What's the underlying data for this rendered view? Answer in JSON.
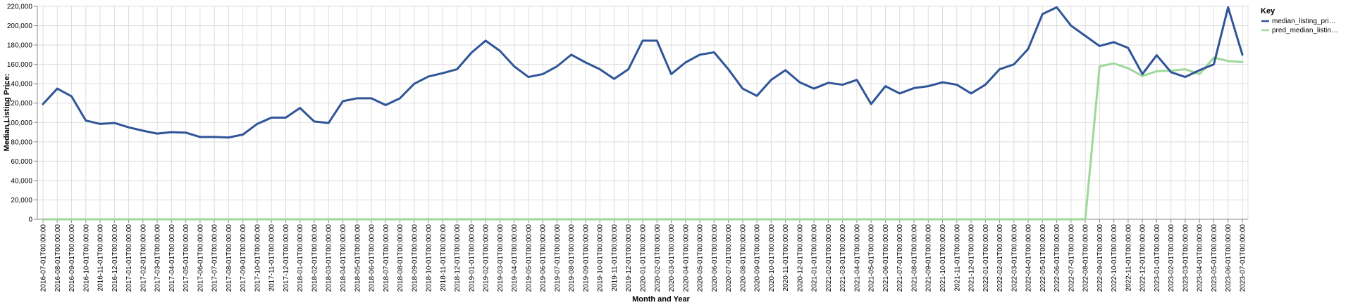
{
  "chart_data": {
    "type": "line",
    "xlabel": "Month and Year",
    "ylabel": "Median Listing Price:",
    "ylim": [
      0,
      220000
    ],
    "yticks": [
      0,
      20000,
      40000,
      60000,
      80000,
      100000,
      120000,
      140000,
      160000,
      180000,
      200000,
      220000
    ],
    "ytick_labels": [
      "0",
      "20,000",
      "40,000",
      "60,000",
      "80,000",
      "100,000",
      "120,000",
      "140,000",
      "160,000",
      "180,000",
      "200,000",
      "220,000"
    ],
    "grid": true,
    "legend_placement": "right",
    "x": [
      "2016-07-01T00:00:00",
      "2016-08-01T00:00:00",
      "2016-09-01T00:00:00",
      "2016-10-01T00:00:00",
      "2016-11-01T00:00:00",
      "2016-12-01T00:00:00",
      "2017-01-01T00:00:00",
      "2017-02-01T00:00:00",
      "2017-03-01T00:00:00",
      "2017-04-01T00:00:00",
      "2017-05-01T00:00:00",
      "2017-06-01T00:00:00",
      "2017-07-01T00:00:00",
      "2017-08-01T00:00:00",
      "2017-09-01T00:00:00",
      "2017-10-01T00:00:00",
      "2017-11-01T00:00:00",
      "2017-12-01T00:00:00",
      "2018-01-01T00:00:00",
      "2018-02-01T00:00:00",
      "2018-03-01T00:00:00",
      "2018-04-01T00:00:00",
      "2018-05-01T00:00:00",
      "2018-06-01T00:00:00",
      "2018-07-01T00:00:00",
      "2018-08-01T00:00:00",
      "2018-09-01T00:00:00",
      "2018-10-01T00:00:00",
      "2018-11-01T00:00:00",
      "2018-12-01T00:00:00",
      "2019-01-01T00:00:00",
      "2019-02-01T00:00:00",
      "2019-03-01T00:00:00",
      "2019-04-01T00:00:00",
      "2019-05-01T00:00:00",
      "2019-06-01T00:00:00",
      "2019-07-01T00:00:00",
      "2019-08-01T00:00:00",
      "2019-09-01T00:00:00",
      "2019-10-01T00:00:00",
      "2019-11-01T00:00:00",
      "2019-12-01T00:00:00",
      "2020-01-01T00:00:00",
      "2020-02-01T00:00:00",
      "2020-03-01T00:00:00",
      "2020-04-01T00:00:00",
      "2020-05-01T00:00:00",
      "2020-06-01T00:00:00",
      "2020-07-01T00:00:00",
      "2020-08-01T00:00:00",
      "2020-09-01T00:00:00",
      "2020-10-01T00:00:00",
      "2020-11-01T00:00:00",
      "2020-12-01T00:00:00",
      "2021-01-01T00:00:00",
      "2021-02-01T00:00:00",
      "2021-03-01T00:00:00",
      "2021-04-01T00:00:00",
      "2021-05-01T00:00:00",
      "2021-06-01T00:00:00",
      "2021-07-01T00:00:00",
      "2021-08-01T00:00:00",
      "2021-09-01T00:00:00",
      "2021-10-01T00:00:00",
      "2021-11-01T00:00:00",
      "2021-12-01T00:00:00",
      "2022-01-01T00:00:00",
      "2022-02-01T00:00:00",
      "2022-03-01T00:00:00",
      "2022-04-01T00:00:00",
      "2022-05-01T00:00:00",
      "2022-06-01T00:00:00",
      "2022-07-01T00:00:00",
      "2022-08-01T00:00:00",
      "2022-09-01T00:00:00",
      "2022-10-01T00:00:00",
      "2022-11-01T00:00:00",
      "2022-12-01T00:00:00",
      "2023-01-01T00:00:00",
      "2023-02-01T00:00:00",
      "2023-03-01T00:00:00",
      "2023-04-01T00:00:00",
      "2023-05-01T00:00:00",
      "2023-06-01T00:00:00",
      "2023-07-01T00:00:00"
    ],
    "series": [
      {
        "name": "median_listing_pri…",
        "color": "#2f5597",
        "values": [
          119000,
          135000,
          127000,
          102000,
          98500,
          99500,
          95000,
          91500,
          88500,
          90000,
          89500,
          85000,
          85000,
          84500,
          87500,
          98500,
          105000,
          105000,
          115000,
          101000,
          99500,
          122000,
          125000,
          125000,
          118000,
          125000,
          140000,
          147500,
          151000,
          155000,
          172000,
          184500,
          174000,
          158000,
          147000,
          150000,
          158000,
          170000,
          162000,
          155000,
          145000,
          155000,
          184500,
          184500,
          150000,
          162000,
          170000,
          172500,
          155000,
          135000,
          127500,
          144000,
          154000,
          141500,
          135000,
          141000,
          139000,
          144000,
          119000,
          137500,
          130000,
          135500,
          137500,
          141500,
          139000,
          130000,
          139000,
          155000,
          160000,
          176000,
          212000,
          219000,
          200000,
          189500,
          179000,
          183000,
          177000,
          150000,
          169500,
          152000,
          147000,
          154000,
          160000,
          219000,
          170000
        ]
      },
      {
        "name": "pred_median_listin…",
        "color": "#9fd89a",
        "values": [
          0,
          0,
          0,
          0,
          0,
          0,
          0,
          0,
          0,
          0,
          0,
          0,
          0,
          0,
          0,
          0,
          0,
          0,
          0,
          0,
          0,
          0,
          0,
          0,
          0,
          0,
          0,
          0,
          0,
          0,
          0,
          0,
          0,
          0,
          0,
          0,
          0,
          0,
          0,
          0,
          0,
          0,
          0,
          0,
          0,
          0,
          0,
          0,
          0,
          0,
          0,
          0,
          0,
          0,
          0,
          0,
          0,
          0,
          0,
          0,
          0,
          0,
          0,
          0,
          0,
          0,
          0,
          0,
          0,
          0,
          0,
          0,
          0,
          0,
          158000,
          161000,
          156000,
          148000,
          153000,
          153500,
          155000,
          150000,
          167000,
          163500,
          162500
        ]
      }
    ]
  },
  "legend": {
    "title": "Key"
  }
}
